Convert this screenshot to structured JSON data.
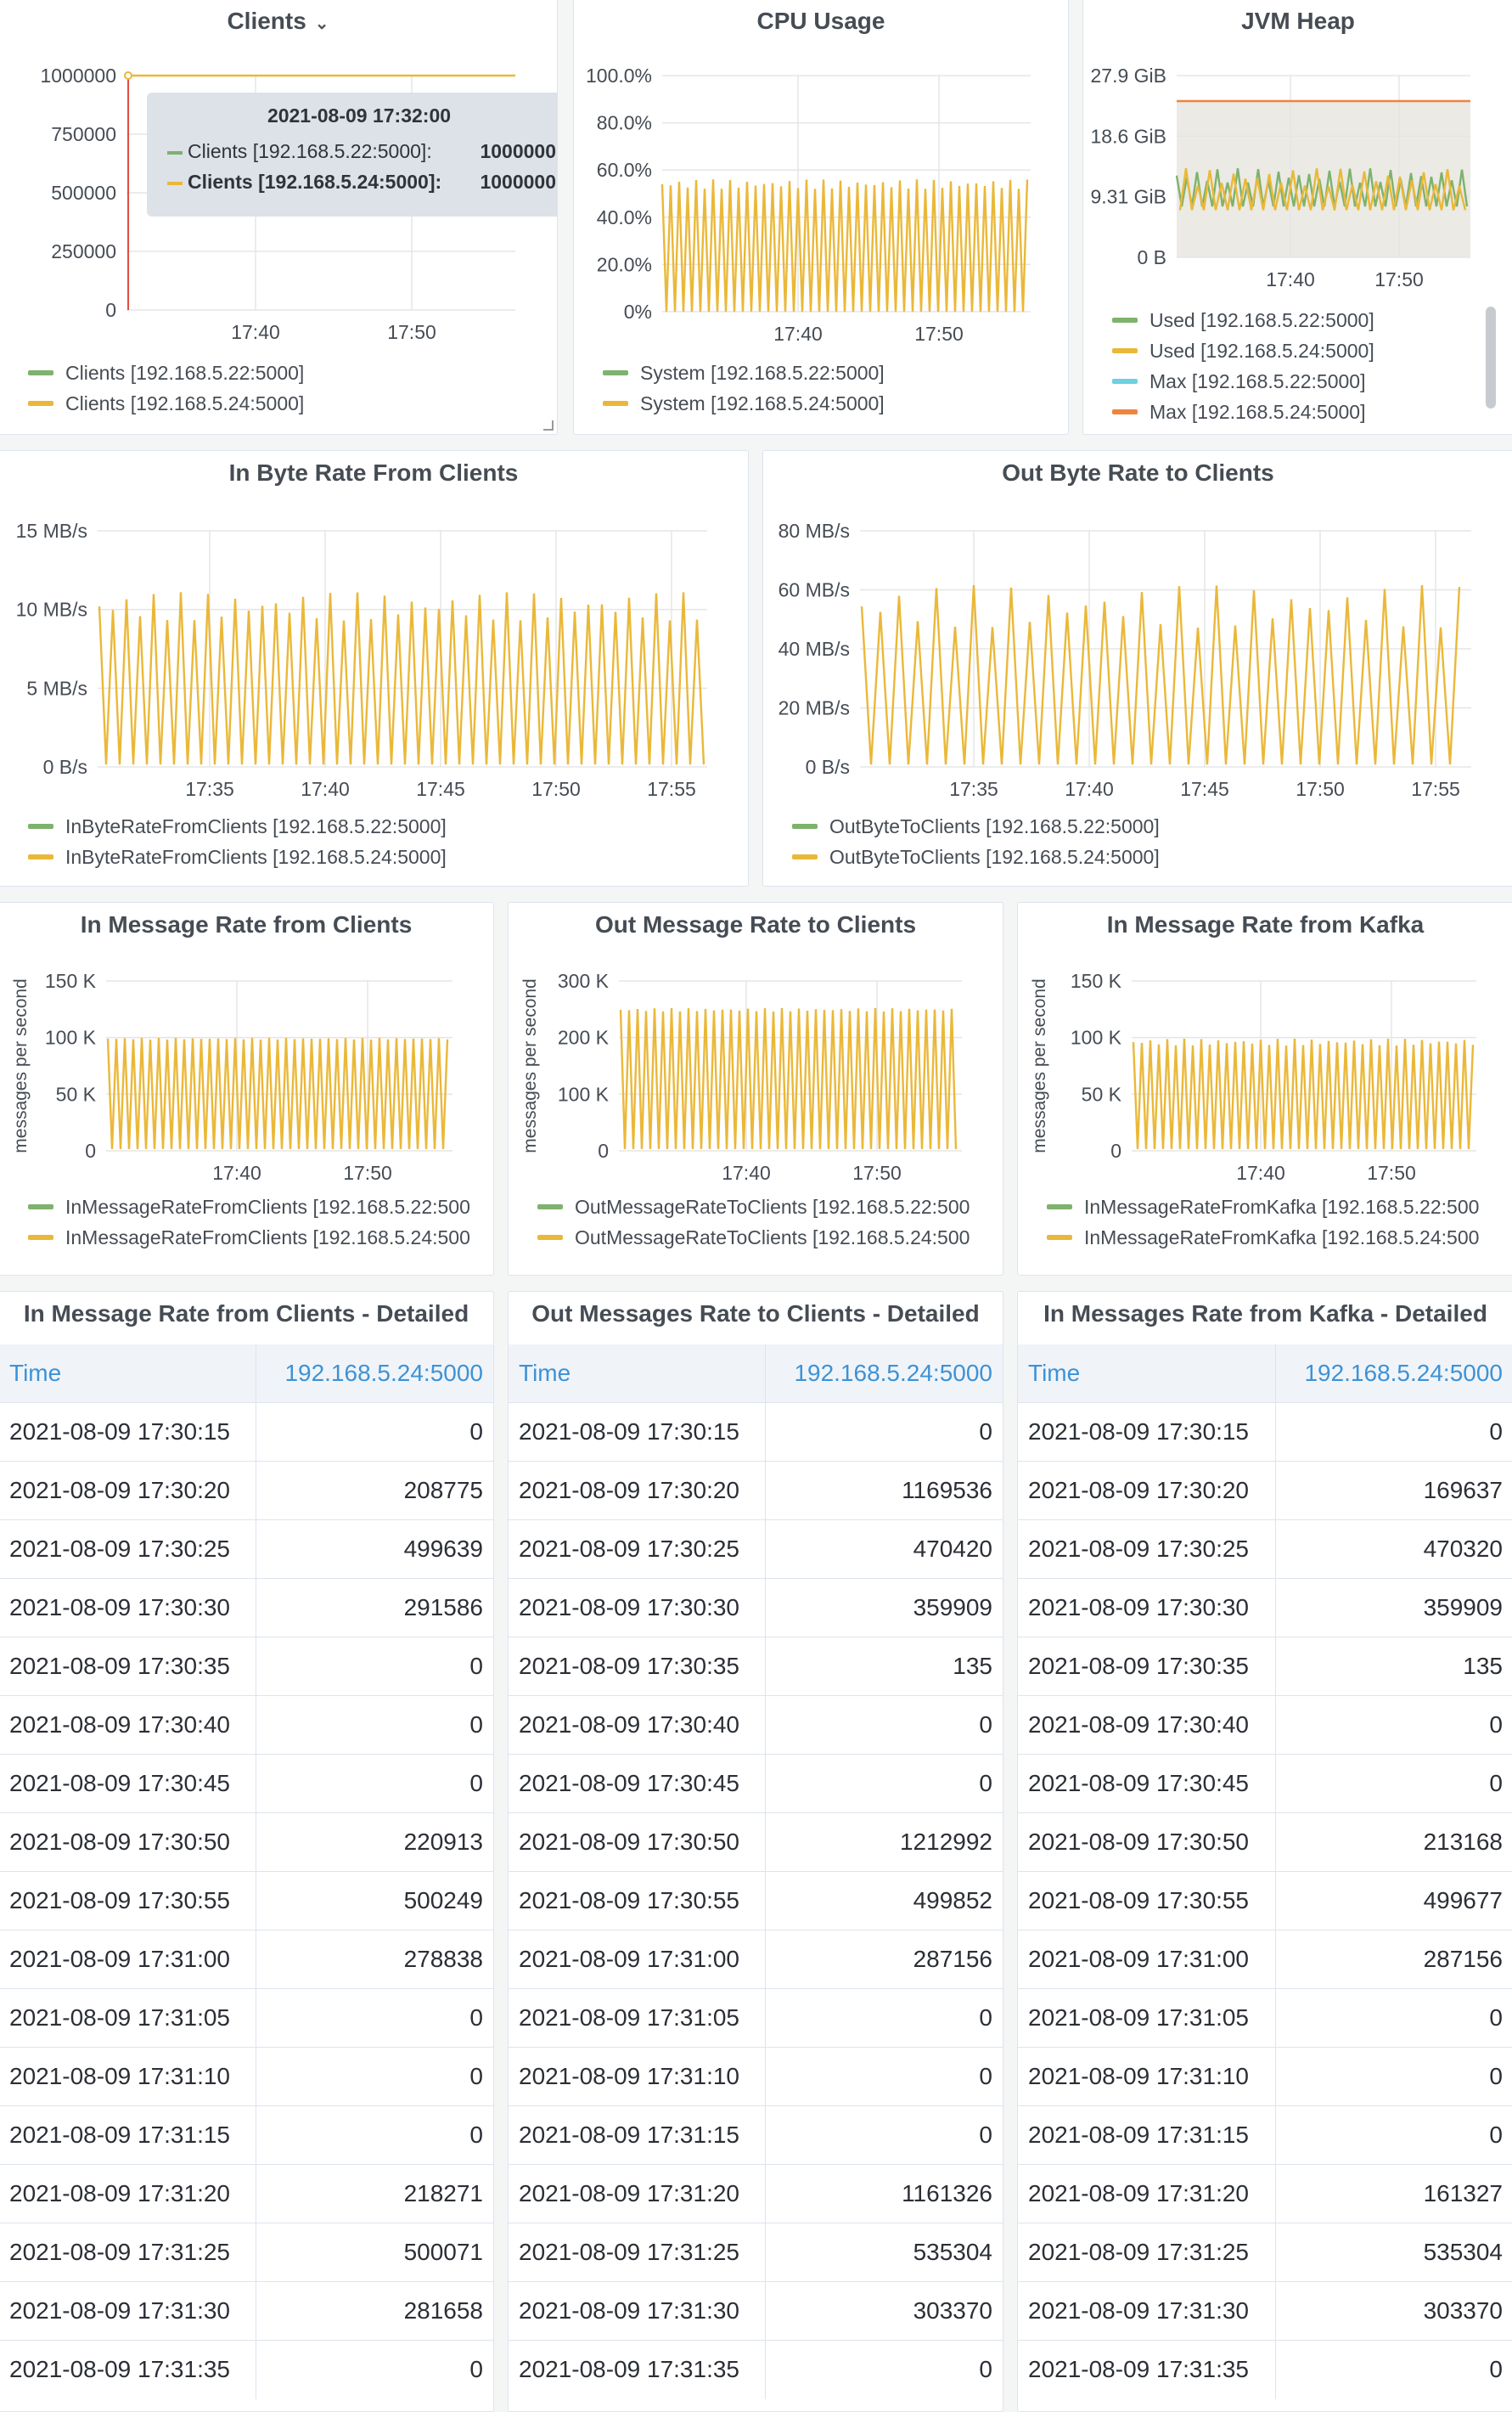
{
  "colors": {
    "green": "#7eb26d",
    "yellow": "#eab839",
    "cyan": "#6ed0e0",
    "orange": "#ef843c",
    "red": "#e24d42"
  },
  "clients": {
    "title": "Clients",
    "caret": "⌄",
    "y_ticks": [
      "1000000",
      "750000",
      "500000",
      "250000",
      "0"
    ],
    "x_ticks": [
      "17:40",
      "17:50"
    ],
    "legend": [
      "Clients [192.168.5.22:5000]",
      "Clients [192.168.5.24:5000]"
    ],
    "tooltip": {
      "time": "2021-08-09 17:32:00",
      "rows": [
        {
          "label": "Clients [192.168.5.22:5000]:",
          "value": "1000000"
        },
        {
          "label": "Clients [192.168.5.24:5000]:",
          "value": "1000000"
        }
      ]
    }
  },
  "cpu": {
    "title": "CPU Usage",
    "y_ticks": [
      "100.0%",
      "80.0%",
      "60.0%",
      "40.0%",
      "20.0%",
      "0%"
    ],
    "x_ticks": [
      "17:40",
      "17:50"
    ],
    "legend": [
      "System [192.168.5.22:5000]",
      "System [192.168.5.24:5000]"
    ]
  },
  "jvm": {
    "title": "JVM Heap",
    "y_ticks": [
      "27.9 GiB",
      "18.6 GiB",
      "9.31 GiB",
      "0 B"
    ],
    "x_ticks": [
      "17:40",
      "17:50"
    ],
    "legend": [
      "Used [192.168.5.22:5000]",
      "Used [192.168.5.24:5000]",
      "Max [192.168.5.22:5000]",
      "Max [192.168.5.24:5000]"
    ]
  },
  "in_bytes": {
    "title": "In Byte Rate From Clients",
    "y_ticks": [
      "15 MB/s",
      "10 MB/s",
      "5 MB/s",
      "0 B/s"
    ],
    "x_ticks": [
      "17:35",
      "17:40",
      "17:45",
      "17:50",
      "17:55"
    ],
    "legend": [
      "InByteRateFromClients [192.168.5.22:5000]",
      "InByteRateFromClients [192.168.5.24:5000]"
    ]
  },
  "out_bytes": {
    "title": "Out Byte Rate to Clients",
    "y_ticks": [
      "80 MB/s",
      "60 MB/s",
      "40 MB/s",
      "20 MB/s",
      "0 B/s"
    ],
    "x_ticks": [
      "17:35",
      "17:40",
      "17:45",
      "17:50",
      "17:55"
    ],
    "legend": [
      "OutByteToClients [192.168.5.22:5000]",
      "OutByteToClients [192.168.5.24:5000]"
    ]
  },
  "in_msg": {
    "title": "In Message Rate from Clients",
    "ylabel": "messages per second",
    "y_ticks": [
      "150 K",
      "100 K",
      "50 K",
      "0"
    ],
    "x_ticks": [
      "17:40",
      "17:50"
    ],
    "legend": [
      "InMessageRateFromClients [192.168.5.22:500",
      "InMessageRateFromClients [192.168.5.24:500"
    ]
  },
  "out_msg": {
    "title": "Out Message Rate to Clients",
    "ylabel": "messages per second",
    "y_ticks": [
      "300 K",
      "200 K",
      "100 K",
      "0"
    ],
    "x_ticks": [
      "17:40",
      "17:50"
    ],
    "legend": [
      "OutMessageRateToClients [192.168.5.22:500",
      "OutMessageRateToClients [192.168.5.24:500"
    ]
  },
  "kafka_msg": {
    "title": "In Message Rate from Kafka",
    "ylabel": "messages per second",
    "y_ticks": [
      "150 K",
      "100 K",
      "50 K",
      "0"
    ],
    "x_ticks": [
      "17:40",
      "17:50"
    ],
    "legend": [
      "InMessageRateFromKafka [192.168.5.22:500",
      "InMessageRateFromKafka [192.168.5.24:500"
    ]
  },
  "tables": [
    {
      "title": "In Message Rate from Clients - Detailed",
      "col_time": "Time",
      "col_value": "192.168.5.24:5000",
      "rows": [
        [
          "2021-08-09 17:30:15",
          "0"
        ],
        [
          "2021-08-09 17:30:20",
          "208775"
        ],
        [
          "2021-08-09 17:30:25",
          "499639"
        ],
        [
          "2021-08-09 17:30:30",
          "291586"
        ],
        [
          "2021-08-09 17:30:35",
          "0"
        ],
        [
          "2021-08-09 17:30:40",
          "0"
        ],
        [
          "2021-08-09 17:30:45",
          "0"
        ],
        [
          "2021-08-09 17:30:50",
          "220913"
        ],
        [
          "2021-08-09 17:30:55",
          "500249"
        ],
        [
          "2021-08-09 17:31:00",
          "278838"
        ],
        [
          "2021-08-09 17:31:05",
          "0"
        ],
        [
          "2021-08-09 17:31:10",
          "0"
        ],
        [
          "2021-08-09 17:31:15",
          "0"
        ],
        [
          "2021-08-09 17:31:20",
          "218271"
        ],
        [
          "2021-08-09 17:31:25",
          "500071"
        ],
        [
          "2021-08-09 17:31:30",
          "281658"
        ],
        [
          "2021-08-09 17:31:35",
          "0"
        ]
      ]
    },
    {
      "title": "Out Messages Rate to Clients - Detailed",
      "col_time": "Time",
      "col_value": "192.168.5.24:5000",
      "rows": [
        [
          "2021-08-09 17:30:15",
          "0"
        ],
        [
          "2021-08-09 17:30:20",
          "1169536"
        ],
        [
          "2021-08-09 17:30:25",
          "470420"
        ],
        [
          "2021-08-09 17:30:30",
          "359909"
        ],
        [
          "2021-08-09 17:30:35",
          "135"
        ],
        [
          "2021-08-09 17:30:40",
          "0"
        ],
        [
          "2021-08-09 17:30:45",
          "0"
        ],
        [
          "2021-08-09 17:30:50",
          "1212992"
        ],
        [
          "2021-08-09 17:30:55",
          "499852"
        ],
        [
          "2021-08-09 17:31:00",
          "287156"
        ],
        [
          "2021-08-09 17:31:05",
          "0"
        ],
        [
          "2021-08-09 17:31:10",
          "0"
        ],
        [
          "2021-08-09 17:31:15",
          "0"
        ],
        [
          "2021-08-09 17:31:20",
          "1161326"
        ],
        [
          "2021-08-09 17:31:25",
          "535304"
        ],
        [
          "2021-08-09 17:31:30",
          "303370"
        ],
        [
          "2021-08-09 17:31:35",
          "0"
        ]
      ]
    },
    {
      "title": "In Messages Rate from Kafka - Detailed",
      "col_time": "Time",
      "col_value": "192.168.5.24:5000",
      "rows": [
        [
          "2021-08-09 17:30:15",
          "0"
        ],
        [
          "2021-08-09 17:30:20",
          "169637"
        ],
        [
          "2021-08-09 17:30:25",
          "470320"
        ],
        [
          "2021-08-09 17:30:30",
          "359909"
        ],
        [
          "2021-08-09 17:30:35",
          "135"
        ],
        [
          "2021-08-09 17:30:40",
          "0"
        ],
        [
          "2021-08-09 17:30:45",
          "0"
        ],
        [
          "2021-08-09 17:30:50",
          "213168"
        ],
        [
          "2021-08-09 17:30:55",
          "499677"
        ],
        [
          "2021-08-09 17:31:00",
          "287156"
        ],
        [
          "2021-08-09 17:31:05",
          "0"
        ],
        [
          "2021-08-09 17:31:10",
          "0"
        ],
        [
          "2021-08-09 17:31:15",
          "0"
        ],
        [
          "2021-08-09 17:31:20",
          "161327"
        ],
        [
          "2021-08-09 17:31:25",
          "535304"
        ],
        [
          "2021-08-09 17:31:30",
          "303370"
        ],
        [
          "2021-08-09 17:31:35",
          "0"
        ]
      ]
    }
  ]
}
